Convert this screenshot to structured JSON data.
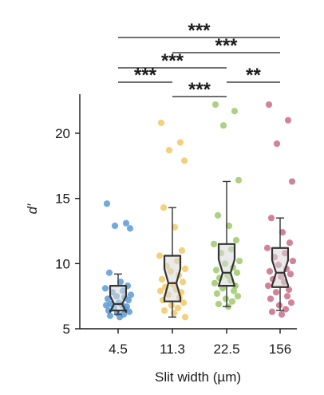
{
  "chart_data": {
    "type": "box",
    "xlabel": "Slit width (µm)",
    "ylabel": "d′",
    "ylim": [
      5,
      23
    ],
    "yticks": [
      5,
      10,
      15,
      20
    ],
    "grid": false,
    "categories": [
      "4.5",
      "11.3",
      "22.5",
      "156"
    ],
    "colors": [
      "#5b9bd5",
      "#f2c866",
      "#9cc96b",
      "#c96f86"
    ],
    "box_fill": "#d9d9d9",
    "box_stroke": "#333333",
    "boxes": [
      {
        "category": "4.5",
        "whisker_low": 6.1,
        "q1": 6.4,
        "median": 6.9,
        "q3": 8.3,
        "whisker_high": 9.2
      },
      {
        "category": "11.3",
        "whisker_low": 5.9,
        "q1": 7.1,
        "median": 8.5,
        "q3": 10.6,
        "whisker_high": 14.3
      },
      {
        "category": "22.5",
        "whisker_low": 6.7,
        "q1": 8.3,
        "median": 9.3,
        "q3": 11.5,
        "whisker_high": 16.3
      },
      {
        "category": "156",
        "whisker_low": 6.4,
        "q1": 8.2,
        "median": 9.3,
        "q3": 11.2,
        "whisker_high": 13.5
      }
    ],
    "points": [
      [
        14.6,
        13.1,
        12.9,
        12.7,
        9.3,
        8.6,
        8.3,
        8.1,
        7.9,
        7.8,
        7.6,
        7.5,
        7.4,
        7.3,
        7.2,
        7.0,
        6.9,
        6.8,
        6.8,
        6.7,
        6.6,
        6.5,
        6.4,
        6.3,
        6.2,
        6.1,
        6.0,
        5.9
      ],
      [
        20.8,
        19.3,
        18.7,
        17.9,
        14.3,
        12.8,
        11.0,
        10.6,
        10.2,
        9.8,
        9.6,
        9.4,
        9.1,
        8.8,
        8.6,
        8.4,
        8.2,
        8.0,
        7.9,
        7.8,
        7.6,
        7.4,
        7.2,
        7.0,
        6.8,
        6.6,
        6.4,
        6.2,
        5.9
      ],
      [
        22.2,
        21.7,
        20.6,
        16.4,
        13.7,
        12.9,
        11.8,
        11.5,
        11.1,
        10.8,
        10.2,
        10.0,
        9.7,
        9.5,
        9.3,
        9.1,
        8.9,
        8.7,
        8.5,
        8.3,
        8.1,
        7.9,
        7.7,
        7.5,
        7.3,
        7.1,
        6.9,
        6.7
      ],
      [
        22.2,
        21.0,
        19.2,
        16.3,
        13.5,
        12.4,
        11.6,
        11.2,
        10.8,
        10.5,
        10.2,
        9.9,
        9.6,
        9.4,
        9.2,
        9.0,
        8.8,
        8.6,
        8.3,
        8.0,
        7.8,
        7.5,
        7.3,
        7.0,
        6.8,
        6.5,
        6.3,
        6.1
      ]
    ],
    "significance": [
      {
        "from": "4.5",
        "to": "156",
        "label": "***"
      },
      {
        "from": "11.3",
        "to": "156",
        "label": "***"
      },
      {
        "from": "4.5",
        "to": "22.5",
        "label": "***"
      },
      {
        "from": "4.5",
        "to": "11.3",
        "label": "***"
      },
      {
        "from": "11.3",
        "to": "22.5",
        "label": "***"
      },
      {
        "from": "22.5",
        "to": "156",
        "label": "**"
      }
    ]
  }
}
